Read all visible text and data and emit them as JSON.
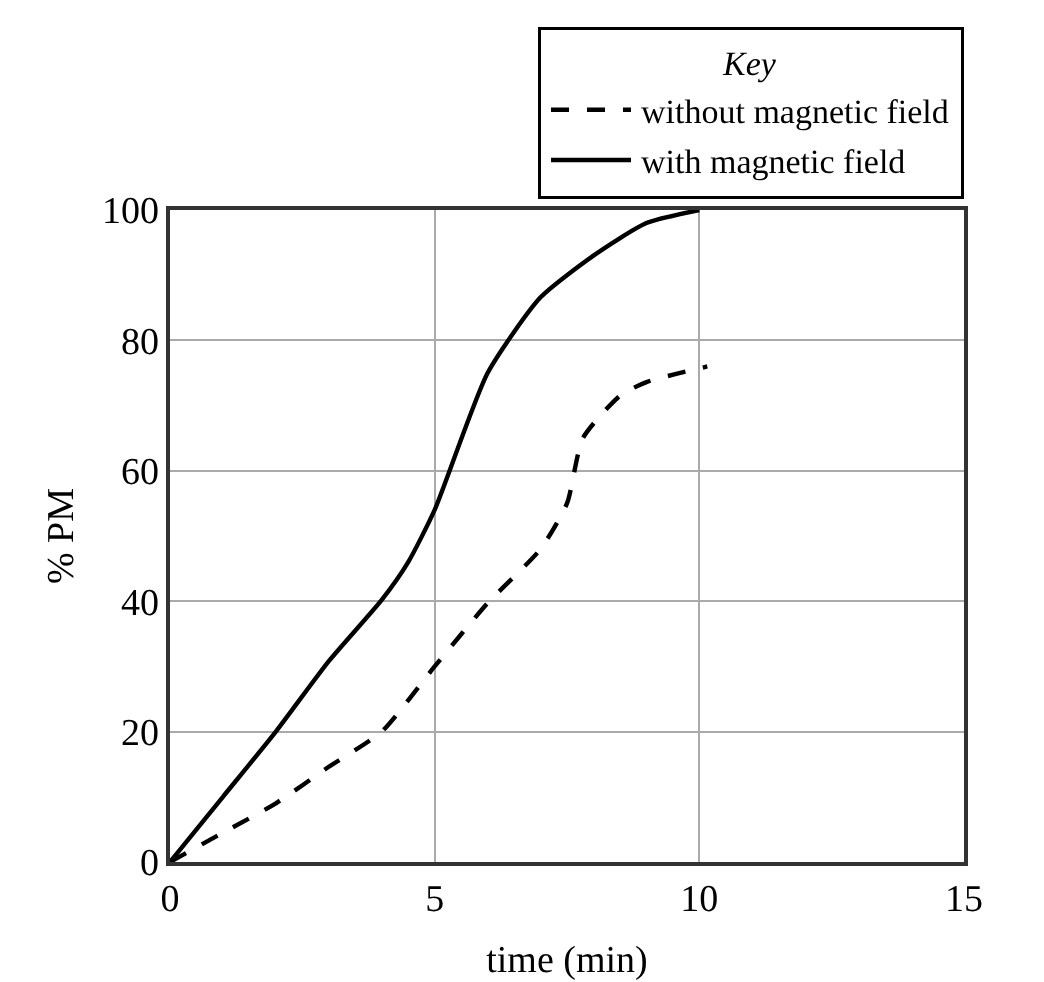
{
  "chart_data": {
    "type": "line",
    "xlabel": "time (min)",
    "ylabel": "% PM",
    "legend_title": "Key",
    "legend": "top right",
    "xlim": [
      0,
      15
    ],
    "xticks": [
      0,
      5,
      10,
      15
    ],
    "ylim": [
      0,
      100
    ],
    "yticks": [
      0,
      20,
      40,
      60,
      80,
      100
    ],
    "grid": true,
    "series": [
      {
        "name": "without magnetic field",
        "color": "#000000",
        "line_style": "dashed",
        "x": [
          0,
          1,
          2,
          3,
          4,
          5,
          6,
          7,
          7.5,
          7.8,
          8.5,
          9,
          10.15
        ],
        "values": [
          0,
          4.5,
          9,
          14.6,
          20,
          30,
          39.7,
          48,
          55,
          65,
          71.5,
          73.6,
          76
        ]
      },
      {
        "name": "with magnetic field",
        "color": "#000000",
        "line_style": "solid",
        "x": [
          0,
          1,
          2,
          3,
          4,
          4.5,
          5,
          6,
          7,
          8,
          9,
          10
        ],
        "values": [
          0,
          10,
          20,
          30.8,
          40.2,
          46,
          54,
          75,
          86.6,
          93,
          98,
          100
        ]
      }
    ]
  }
}
